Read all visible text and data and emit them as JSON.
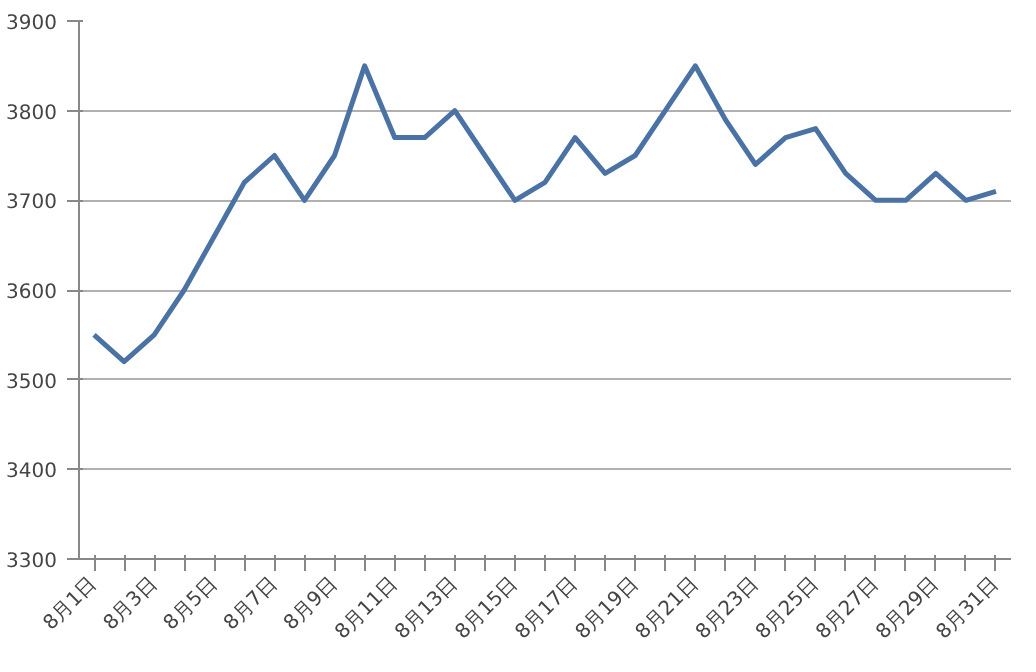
{
  "chart_data": {
    "type": "line",
    "categories": [
      "8月1日",
      null,
      "8月3日",
      null,
      "8月5日",
      null,
      "8月7日",
      null,
      "8月9日",
      null,
      "8月11日",
      null,
      "8月13日",
      null,
      "8月15日",
      null,
      "8月17日",
      null,
      "8月19日",
      null,
      "8月21日",
      null,
      "8月23日",
      null,
      "8月25日",
      null,
      "8月27日",
      null,
      "8月29日",
      null,
      "8月31日"
    ],
    "series": [
      {
        "color": "#4a72a5",
        "values": [
          3550,
          3520,
          3550,
          3600,
          3660,
          3720,
          3750,
          3700,
          3750,
          3850,
          3770,
          3770,
          3800,
          3750,
          3700,
          3720,
          3770,
          3730,
          3750,
          3800,
          3850,
          3790,
          3740,
          3770,
          3780,
          3730,
          3700,
          3700,
          3730,
          3700,
          3710
        ]
      }
    ],
    "ylim": [
      3300,
      3900
    ],
    "yticks": [
      3300,
      3400,
      3500,
      3600,
      3700,
      3800,
      3900
    ],
    "grid": "y",
    "marker": "none",
    "line_style": "solid"
  }
}
